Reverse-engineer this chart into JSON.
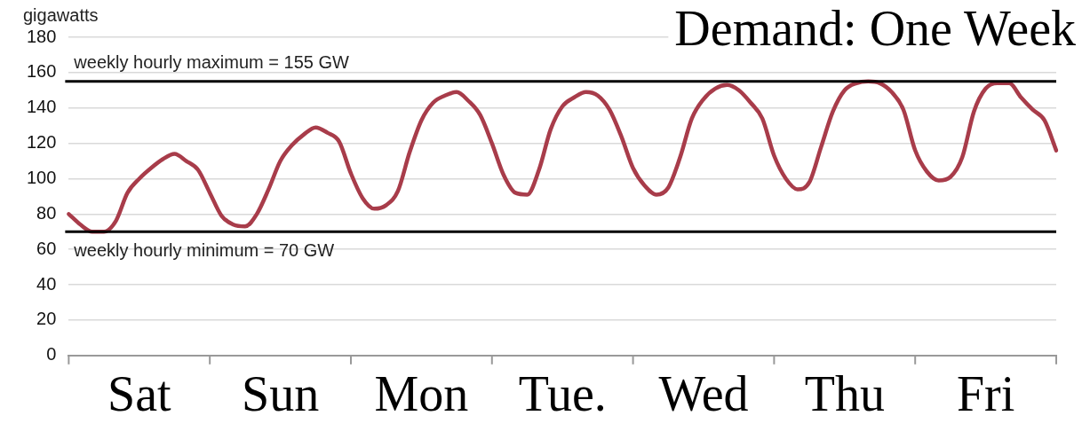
{
  "chart_data": {
    "type": "line",
    "title": "Demand: One Week",
    "ylabel": "gigawatts",
    "categories": [
      null,
      null,
      null,
      null,
      null,
      null,
      "Sat",
      null,
      null,
      null,
      null,
      null,
      null,
      null,
      null,
      null,
      null,
      null,
      "Sun",
      null,
      null,
      null,
      null,
      null,
      null,
      null,
      null,
      null,
      null,
      null,
      "Mon",
      null,
      null,
      null,
      null,
      null,
      null,
      null,
      null,
      null,
      null,
      null,
      "Tue.",
      null,
      null,
      null,
      null,
      null,
      null,
      null,
      null,
      null,
      null,
      null,
      "Wed",
      null,
      null,
      null,
      null,
      null,
      null,
      null,
      null,
      null,
      null,
      null,
      "Thu",
      null,
      null,
      null,
      null,
      null,
      null,
      null,
      null,
      null,
      null,
      null,
      "Fri",
      null,
      null,
      null,
      null,
      null,
      null
    ],
    "series": [
      {
        "color": "#a83c4a",
        "values": [
          80,
          74,
          70,
          70,
          76,
          92,
          100,
          106,
          111,
          114,
          110,
          105,
          92,
          79,
          74,
          73,
          80,
          94,
          110,
          119,
          125,
          129,
          126,
          121,
          103,
          89,
          83,
          85,
          93,
          115,
          133,
          143,
          147,
          149,
          144,
          136,
          120,
          102,
          92,
          91,
          105,
          128,
          141,
          146,
          149,
          147,
          139,
          124,
          106,
          96,
          91,
          95,
          112,
          134,
          145,
          151,
          153,
          150,
          143,
          134,
          113,
          100,
          94,
          98,
          118,
          138,
          150,
          154,
          155,
          154,
          149,
          139,
          116,
          104,
          99,
          101,
          112,
          138,
          151,
          154,
          154,
          146,
          139,
          133,
          116
        ]
      }
    ],
    "ylim": [
      0,
      180
    ],
    "yticks": [
      0,
      20,
      40,
      60,
      80,
      100,
      120,
      140,
      160,
      180
    ],
    "ref_lines": [
      {
        "axis": "y",
        "value": 155,
        "label": "weekly hourly maximum = 155 GW",
        "color": "#000000"
      },
      {
        "axis": "y",
        "value": 70,
        "label": "weekly hourly minimum = 70 GW",
        "color": "#000000"
      }
    ],
    "grid": "y",
    "legend": false,
    "marker": "none",
    "line_style": "solid"
  }
}
